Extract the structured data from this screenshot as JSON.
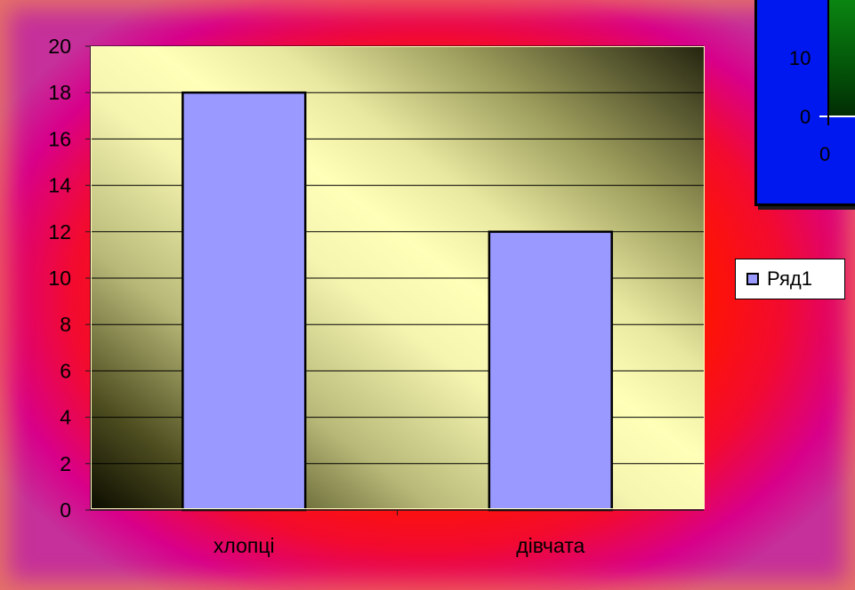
{
  "chart_data": {
    "type": "bar",
    "categories": [
      "хлопці",
      "дівчата"
    ],
    "series": [
      {
        "name": "Ряд1",
        "values": [
          18,
          12
        ]
      }
    ],
    "ylim": [
      0,
      20
    ],
    "yticks": [
      "0",
      "2",
      "4",
      "6",
      "8",
      "10",
      "12",
      "14",
      "16",
      "18",
      "20"
    ],
    "title": "",
    "xlabel": "",
    "ylabel": "",
    "grid": true,
    "legend_position": "right",
    "colors": {
      "bar_fill": "#9999ff",
      "bar_stroke": "#000000",
      "gridline": "#000000",
      "frame": "#ff1400",
      "plot_light": "#ffffb8",
      "plot_dark": "#0d0d00"
    }
  },
  "legend": {
    "label": "Ряд1"
  },
  "partial_chart": {
    "visible_ticks": [
      "10",
      "0"
    ],
    "x_tick": "0",
    "background": "#0018f0",
    "plot_fill": "#0b8a12"
  }
}
